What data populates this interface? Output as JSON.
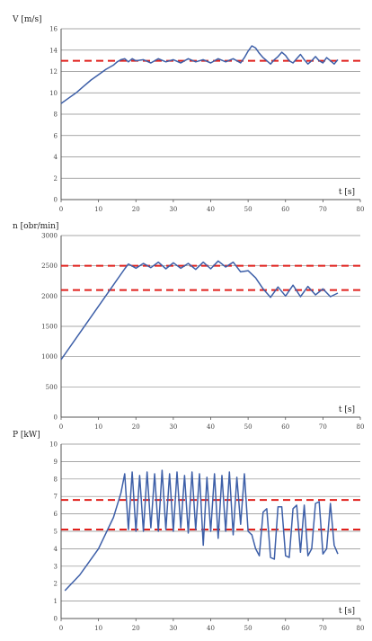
{
  "chart_data": [
    {
      "type": "line",
      "ylabel": "V [m/s]",
      "xlabel": "t [s]",
      "xlim": [
        0,
        80
      ],
      "ylim": [
        0,
        16
      ],
      "xticks": [
        0,
        10,
        20,
        30,
        40,
        50,
        60,
        70,
        80
      ],
      "yticks": [
        0,
        2,
        4,
        6,
        8,
        10,
        12,
        14,
        16
      ],
      "grid": true,
      "reference_lines": [
        13
      ],
      "reference_color": "#e0201c",
      "line_color": "#3d5fa8",
      "series": [
        {
          "x": [
            0,
            2,
            4,
            6,
            8,
            10,
            12,
            14,
            15,
            16,
            17,
            18,
            19,
            20,
            22,
            24,
            26,
            28,
            30,
            32,
            34,
            36,
            38,
            40,
            42,
            44,
            46,
            48,
            49,
            50,
            51,
            52,
            53,
            54,
            55,
            56,
            57,
            58,
            59,
            60,
            61,
            62,
            63,
            64,
            65,
            66,
            67,
            68,
            69,
            70,
            71,
            72,
            73,
            74
          ],
          "y": [
            9.0,
            9.5,
            10.0,
            10.6,
            11.2,
            11.7,
            12.2,
            12.6,
            12.9,
            13.1,
            13.2,
            12.9,
            13.2,
            13.0,
            13.1,
            12.8,
            13.2,
            12.9,
            13.1,
            12.8,
            13.2,
            12.9,
            13.1,
            12.8,
            13.2,
            12.9,
            13.2,
            12.8,
            13.3,
            13.9,
            14.4,
            14.2,
            13.7,
            13.3,
            13.0,
            12.7,
            13.1,
            13.4,
            13.8,
            13.5,
            13.0,
            12.8,
            13.2,
            13.6,
            13.1,
            12.7,
            13.0,
            13.4,
            13.0,
            12.8,
            13.3,
            13.0,
            12.7,
            13.1
          ]
        }
      ]
    },
    {
      "type": "line",
      "ylabel": "n [obr/min]",
      "xlabel": "t [s]",
      "xlim": [
        0,
        80
      ],
      "ylim": [
        0,
        3000
      ],
      "xticks": [
        0,
        10,
        20,
        30,
        40,
        50,
        60,
        70,
        80
      ],
      "yticks": [
        0,
        500,
        1000,
        1500,
        2000,
        2500,
        3000
      ],
      "grid": true,
      "reference_lines": [
        2500,
        2100
      ],
      "reference_color": "#e0201c",
      "line_color": "#3d5fa8",
      "series": [
        {
          "x": [
            0,
            17,
            18,
            20,
            22,
            24,
            26,
            28,
            30,
            32,
            34,
            36,
            38,
            40,
            42,
            44,
            46,
            48,
            50,
            52,
            54,
            56,
            58,
            60,
            62,
            64,
            66,
            68,
            70,
            72,
            74
          ],
          "y": [
            950,
            2450,
            2530,
            2460,
            2540,
            2470,
            2560,
            2450,
            2550,
            2460,
            2540,
            2440,
            2560,
            2450,
            2580,
            2480,
            2560,
            2400,
            2420,
            2300,
            2120,
            1980,
            2150,
            2000,
            2180,
            1990,
            2160,
            2020,
            2120,
            1990,
            2050
          ]
        }
      ]
    },
    {
      "type": "line",
      "ylabel": "P [kW]",
      "xlabel": "t [s]",
      "xlim": [
        0,
        80
      ],
      "ylim": [
        0,
        10
      ],
      "xticks": [
        0,
        10,
        20,
        30,
        40,
        50,
        60,
        70,
        80
      ],
      "yticks": [
        0,
        1,
        2,
        3,
        4,
        5,
        6,
        7,
        8,
        9,
        10
      ],
      "grid": true,
      "reference_lines": [
        6.8,
        5.1
      ],
      "reference_color": "#e0201c",
      "line_color": "#3d5fa8",
      "series": [
        {
          "x": [
            1,
            5,
            10,
            14,
            16,
            17,
            18,
            19,
            20,
            21,
            22,
            23,
            24,
            25,
            26,
            27,
            28,
            29,
            30,
            31,
            32,
            33,
            34,
            35,
            36,
            37,
            38,
            39,
            40,
            41,
            42,
            43,
            44,
            45,
            46,
            47,
            48,
            49,
            50,
            51,
            52,
            53,
            54,
            55,
            56,
            57,
            58,
            59,
            60,
            61,
            62,
            63,
            64,
            65,
            66,
            67,
            68,
            69,
            70,
            71,
            72,
            73,
            74
          ],
          "y": [
            1.6,
            2.5,
            4.0,
            5.8,
            7.2,
            8.3,
            5.1,
            8.4,
            5.0,
            8.2,
            5.0,
            8.4,
            5.2,
            8.3,
            5.0,
            8.5,
            5.1,
            8.3,
            5.0,
            8.4,
            5.2,
            8.2,
            4.9,
            8.4,
            5.1,
            8.3,
            4.2,
            8.1,
            5.0,
            8.3,
            4.6,
            8.2,
            5.0,
            8.4,
            4.8,
            8.1,
            5.4,
            8.3,
            5.0,
            4.8,
            4.0,
            3.6,
            6.1,
            6.3,
            3.5,
            3.4,
            6.4,
            6.4,
            3.6,
            3.5,
            6.3,
            6.5,
            3.8,
            6.5,
            3.6,
            4.0,
            6.6,
            6.7,
            3.7,
            4.0,
            6.6,
            4.2,
            3.7
          ]
        }
      ]
    }
  ]
}
